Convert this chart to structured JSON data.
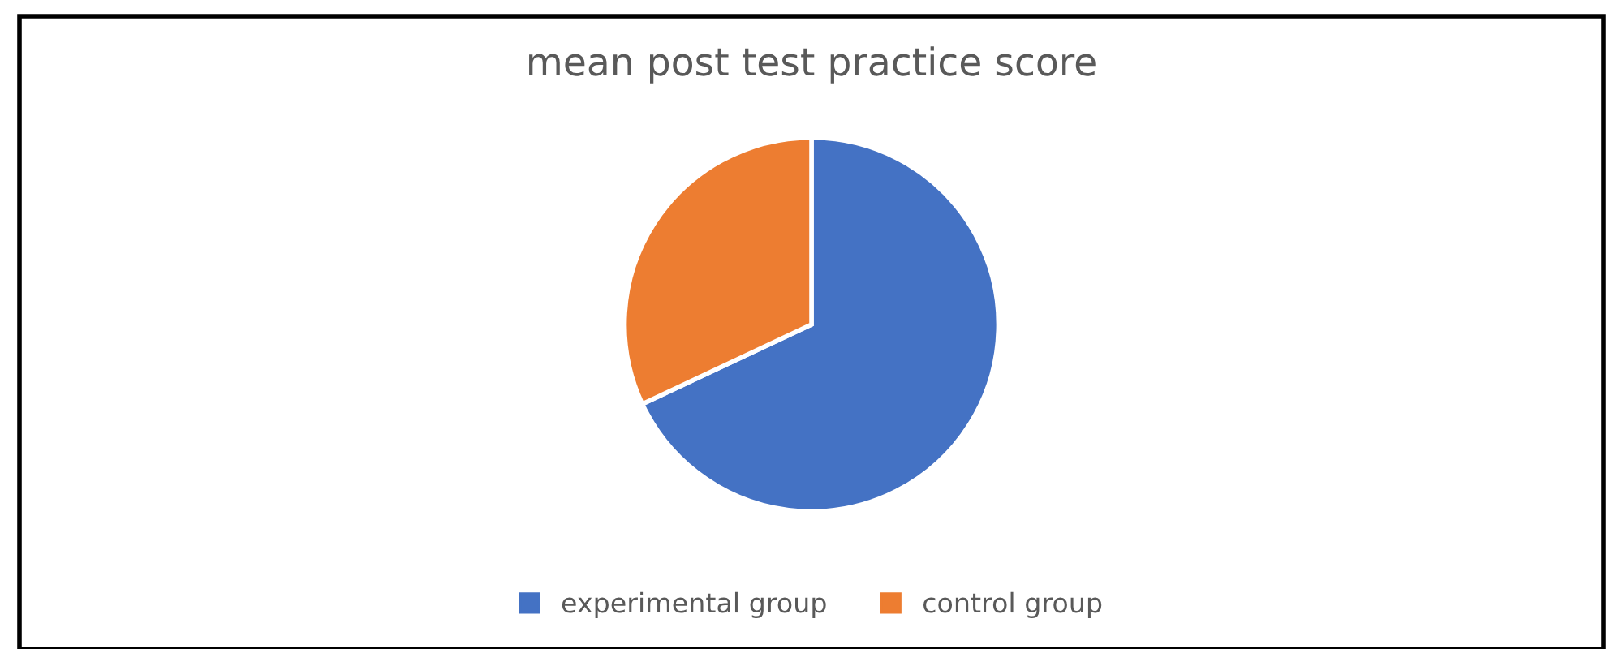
{
  "chart_data": {
    "type": "pie",
    "title": "mean post test practice score",
    "categories": [
      "experimental group",
      "control group"
    ],
    "values": [
      68,
      32
    ],
    "colors": [
      "#4472c4",
      "#ed7d31"
    ],
    "legend": "bottom"
  }
}
